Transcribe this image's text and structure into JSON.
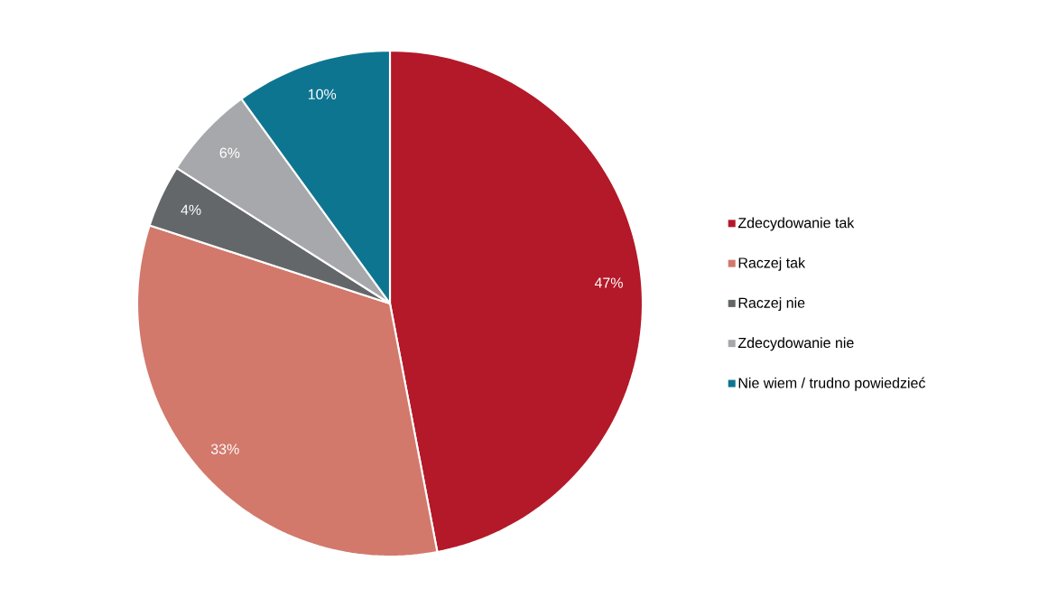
{
  "chart_data": {
    "type": "pie",
    "categories": [
      "Zdecydowanie tak",
      "Raczej tak",
      "Raczej nie",
      "Zdecydowanie nie",
      "Nie wiem / trudno powiedzieć"
    ],
    "values": [
      47,
      33,
      4,
      6,
      10
    ],
    "colors": [
      "#b31928",
      "#d2796c",
      "#636769",
      "#a6a8ab",
      "#0e7591"
    ],
    "value_labels": [
      "47%",
      "33%",
      "4%",
      "6%",
      "10%"
    ],
    "legend": "right"
  }
}
